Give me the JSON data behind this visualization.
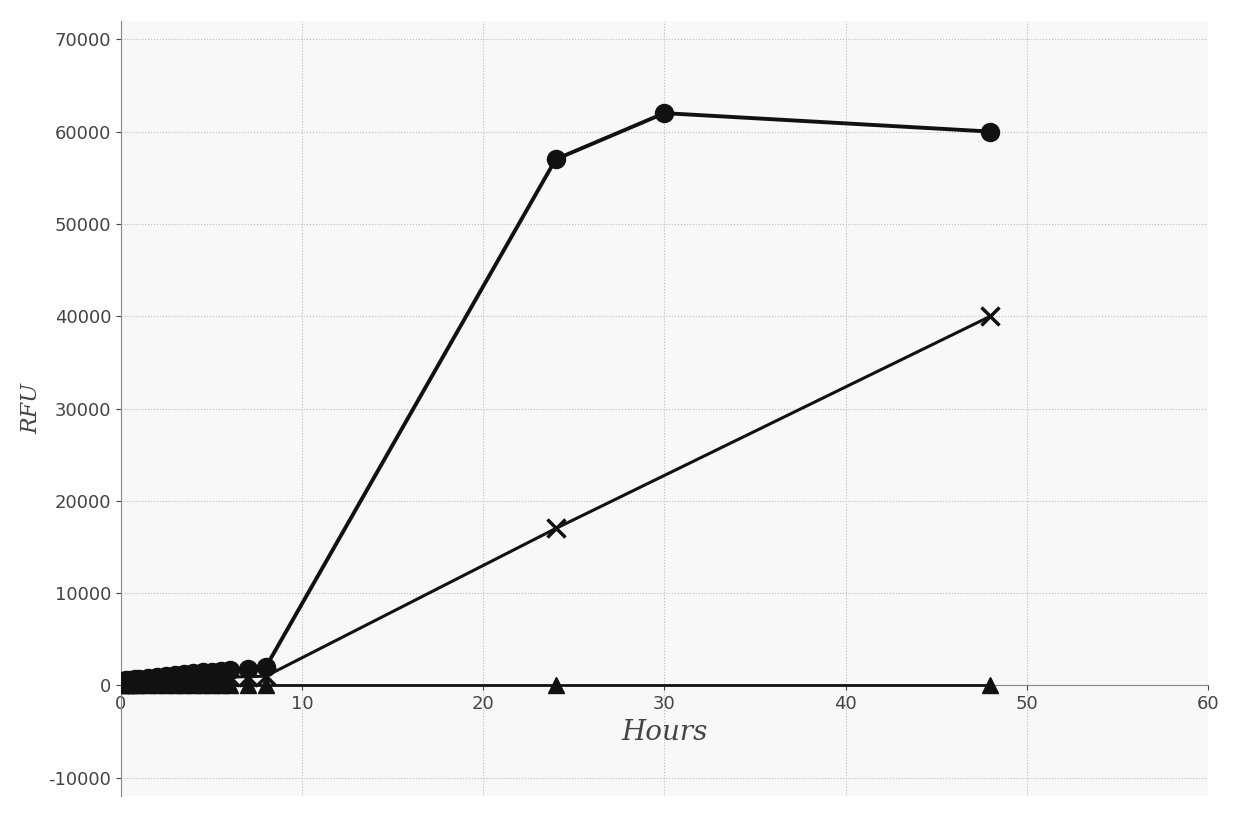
{
  "series_circle": {
    "x": [
      0,
      0.25,
      0.5,
      0.75,
      1,
      1.5,
      2,
      2.5,
      3,
      3.5,
      4,
      4.5,
      5,
      5.5,
      6,
      7,
      8,
      24,
      30,
      48
    ],
    "y": [
      500,
      550,
      600,
      650,
      700,
      800,
      900,
      1000,
      1100,
      1200,
      1300,
      1400,
      1500,
      1600,
      1700,
      1800,
      2000,
      57000,
      62000,
      60000
    ],
    "color": "#111111",
    "marker": "o",
    "markersize": 13,
    "linewidth": 2.8
  },
  "series_x": {
    "x": [
      0,
      0.25,
      0.5,
      0.75,
      1,
      1.5,
      2,
      2.5,
      3,
      3.5,
      4,
      4.5,
      5,
      5.5,
      6,
      7,
      8,
      24,
      48
    ],
    "y": [
      200,
      250,
      300,
      350,
      400,
      450,
      500,
      550,
      600,
      650,
      700,
      750,
      800,
      850,
      900,
      950,
      1000,
      17000,
      40000
    ],
    "color": "#111111",
    "marker": "x",
    "markersize": 13,
    "linewidth": 2.2,
    "markeredgewidth": 2.5
  },
  "series_triangle": {
    "x": [
      0,
      0.25,
      0.5,
      0.75,
      1,
      1.5,
      2,
      2.5,
      3,
      3.5,
      4,
      4.5,
      5,
      5.5,
      6,
      7,
      8,
      24,
      48
    ],
    "y": [
      0,
      0,
      0,
      0,
      0,
      0,
      0,
      0,
      0,
      0,
      0,
      0,
      0,
      0,
      0,
      0,
      0,
      0,
      0
    ],
    "color": "#111111",
    "marker": "^",
    "markersize": 11,
    "linewidth": 2.0
  },
  "xlabel": "Hours",
  "ylabel": "RFU",
  "xlim": [
    0,
    60
  ],
  "ylim": [
    -12000,
    72000
  ],
  "yticks": [
    -10000,
    0,
    10000,
    20000,
    30000,
    40000,
    50000,
    60000,
    70000
  ],
  "xticks": [
    0,
    10,
    20,
    30,
    40,
    50,
    60
  ],
  "grid_linestyle": ":",
  "grid_color": "#bbbbbb",
  "background_color": "#ffffff",
  "plot_bg_color": "#f8f8f8",
  "axis_color": "#888888",
  "font_color": "#444444",
  "xlabel_fontsize": 20,
  "ylabel_fontsize": 16,
  "tick_fontsize": 13
}
